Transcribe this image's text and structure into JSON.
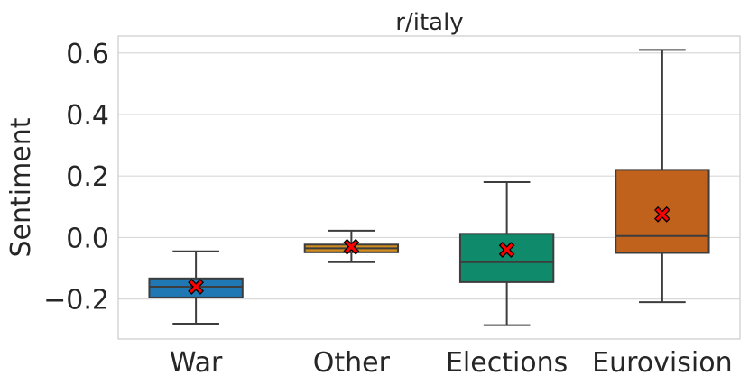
{
  "chart_data": {
    "type": "box",
    "title": "r/italy",
    "xlabel": "",
    "ylabel": "Sentiment",
    "ylim": [
      -0.33,
      0.655
    ],
    "yticks": [
      -0.2,
      0.0,
      0.2,
      0.4,
      0.6
    ],
    "ytick_labels": [
      "−0.2",
      "0.0",
      "0.2",
      "0.4",
      "0.6"
    ],
    "grid": true,
    "mean_marker": "red x",
    "categories": [
      "War",
      "Other",
      "Elections",
      "Eurovision"
    ],
    "boxes": [
      {
        "category": "War",
        "whisker_low": -0.28,
        "q1": -0.195,
        "median": -0.16,
        "q3": -0.133,
        "whisker_high": -0.045,
        "mean": -0.16,
        "color": "#1f77b4"
      },
      {
        "category": "Other",
        "whisker_low": -0.08,
        "q1": -0.048,
        "median": -0.035,
        "q3": -0.023,
        "whisker_high": 0.022,
        "mean": -0.03,
        "color": "#d08c1f"
      },
      {
        "category": "Elections",
        "whisker_low": -0.285,
        "q1": -0.145,
        "median": -0.08,
        "q3": 0.012,
        "whisker_high": 0.18,
        "mean": -0.04,
        "color": "#0f8a6a"
      },
      {
        "category": "Eurovision",
        "whisker_low": -0.21,
        "q1": -0.05,
        "median": 0.005,
        "q3": 0.22,
        "whisker_high": 0.61,
        "mean": 0.075,
        "color": "#c0611c"
      }
    ]
  }
}
